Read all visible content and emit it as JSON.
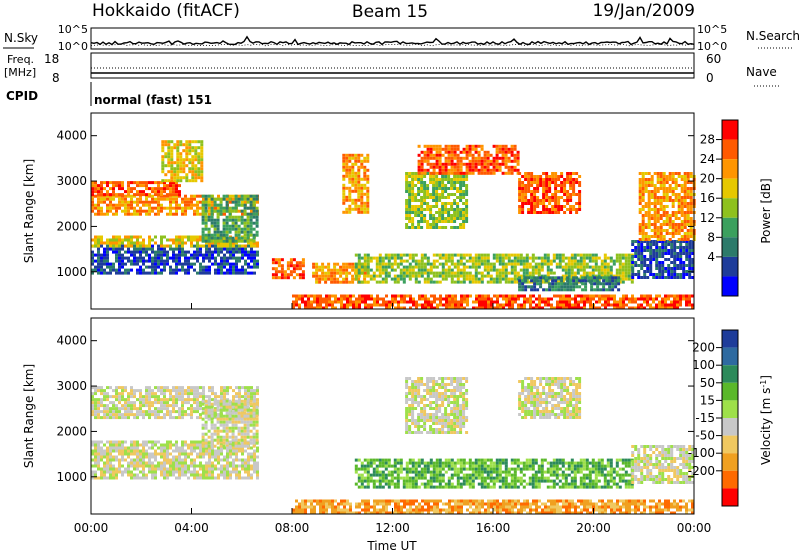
{
  "header": {
    "station": "Hokkaido (fitACF)",
    "beam": "Beam 15",
    "date": "19/Jan/2009"
  },
  "noise_panel": {
    "left_label": "N.Sky",
    "right_label": "N.Search",
    "left_ticks": [
      "10^5",
      "10^0"
    ],
    "right_ticks": [
      "10^5",
      "10^0"
    ]
  },
  "freq_panel": {
    "left_label_line1": "Freq.",
    "left_label_line2": "[MHz]",
    "left_ticks": [
      "18",
      "8"
    ],
    "right_label": "Nave",
    "right_ticks": [
      "60",
      "0"
    ]
  },
  "cpid": {
    "label": "CPID",
    "mode": "normal (fast) 151"
  },
  "chart_data": [
    {
      "type": "heatmap",
      "name": "power",
      "ylabel": "Slant Range [km]",
      "ylim": [
        180,
        4500
      ],
      "yticks": [
        "4000",
        "3000",
        "2000",
        "1000"
      ],
      "xlabel": "Time UT",
      "xlim_hours": [
        0,
        24
      ],
      "xticks": [
        "00:00",
        "04:00",
        "08:00",
        "12:00",
        "16:00",
        "20:00",
        "00:00"
      ],
      "colorbar": {
        "label": "Power [dB]",
        "ticks": [
          "28",
          "24",
          "20",
          "16",
          "12",
          "8",
          "4"
        ],
        "colors": [
          "#ff0000",
          "#ff5a00",
          "#ff9500",
          "#e6c800",
          "#8ec11e",
          "#3ba05e",
          "#2c7a6a",
          "#1e3c9a",
          "#0000ff"
        ]
      },
      "regions": [
        {
          "t": [
            0.0,
            6.6
          ],
          "r": [
            1000,
            1600
          ],
          "level": 7
        },
        {
          "t": [
            0.0,
            6.6
          ],
          "r": [
            1600,
            1800
          ],
          "level": 3
        },
        {
          "t": [
            0.0,
            6.6
          ],
          "r": [
            2300,
            2700
          ],
          "level": 2
        },
        {
          "t": [
            0.0,
            3.5
          ],
          "r": [
            2700,
            3000
          ],
          "level": 1
        },
        {
          "t": [
            2.8,
            4.4
          ],
          "r": [
            3000,
            3900
          ],
          "level": 3
        },
        {
          "t": [
            4.4,
            6.6
          ],
          "r": [
            1700,
            2700
          ],
          "level": 5
        },
        {
          "t": [
            7.2,
            8.5
          ],
          "r": [
            900,
            1300
          ],
          "level": 1
        },
        {
          "t": [
            8.8,
            11.0
          ],
          "r": [
            800,
            1200
          ],
          "level": 2
        },
        {
          "t": [
            10.5,
            21.5
          ],
          "r": [
            800,
            1400
          ],
          "level": 4
        },
        {
          "t": [
            10.0,
            11.0
          ],
          "r": [
            2300,
            3600
          ],
          "level": 2
        },
        {
          "t": [
            12.5,
            15.0
          ],
          "r": [
            2000,
            3200
          ],
          "level": 4
        },
        {
          "t": [
            13.0,
            17.0
          ],
          "r": [
            3200,
            3800
          ],
          "level": 1
        },
        {
          "t": [
            17.0,
            19.5
          ],
          "r": [
            2300,
            3200
          ],
          "level": 1
        },
        {
          "t": [
            17.0,
            21.0
          ],
          "r": [
            600,
            900
          ],
          "level": 6
        },
        {
          "t": [
            21.5,
            24.0
          ],
          "r": [
            900,
            1700
          ],
          "level": 7
        },
        {
          "t": [
            21.8,
            24.0
          ],
          "r": [
            1700,
            3200
          ],
          "level": 2
        },
        {
          "t": [
            8.0,
            24.0
          ],
          "r": [
            180,
            500
          ],
          "level": 1
        }
      ]
    },
    {
      "type": "heatmap",
      "name": "velocity",
      "ylabel": "Slant Range [km]",
      "ylim": [
        180,
        4500
      ],
      "yticks": [
        "4000",
        "3000",
        "2000",
        "1000"
      ],
      "xlabel": "Time UT",
      "xlim_hours": [
        0,
        24
      ],
      "xticks": [
        "00:00",
        "04:00",
        "08:00",
        "12:00",
        "16:00",
        "20:00",
        "00:00"
      ],
      "colorbar": {
        "label": "Velocity [m s",
        "label_sup": "-1",
        "label_end": "]",
        "ticks": [
          "200",
          "100",
          "50",
          "15",
          "-15",
          "-50",
          "-100",
          "-200"
        ],
        "colors": [
          "#1e3c9a",
          "#2e6aa0",
          "#2c8a5a",
          "#5ab82a",
          "#9ee04a",
          "#c8c8c8",
          "#f0c860",
          "#f0a020",
          "#ff6a00",
          "#ff0000"
        ]
      },
      "regions": [
        {
          "t": [
            0.0,
            6.6
          ],
          "r": [
            1000,
            1800
          ],
          "level": 5
        },
        {
          "t": [
            0.0,
            6.6
          ],
          "r": [
            2300,
            3000
          ],
          "level": 5
        },
        {
          "t": [
            4.4,
            6.6
          ],
          "r": [
            1700,
            2700
          ],
          "level": 5
        },
        {
          "t": [
            10.5,
            21.5
          ],
          "r": [
            800,
            1400
          ],
          "level": 3
        },
        {
          "t": [
            12.5,
            15.0
          ],
          "r": [
            2000,
            3200
          ],
          "level": 5
        },
        {
          "t": [
            17.0,
            19.5
          ],
          "r": [
            2300,
            3200
          ],
          "level": 5
        },
        {
          "t": [
            21.5,
            24.0
          ],
          "r": [
            900,
            1700
          ],
          "level": 5
        },
        {
          "t": [
            8.0,
            24.0
          ],
          "r": [
            180,
            500
          ],
          "level": 7
        }
      ]
    }
  ]
}
